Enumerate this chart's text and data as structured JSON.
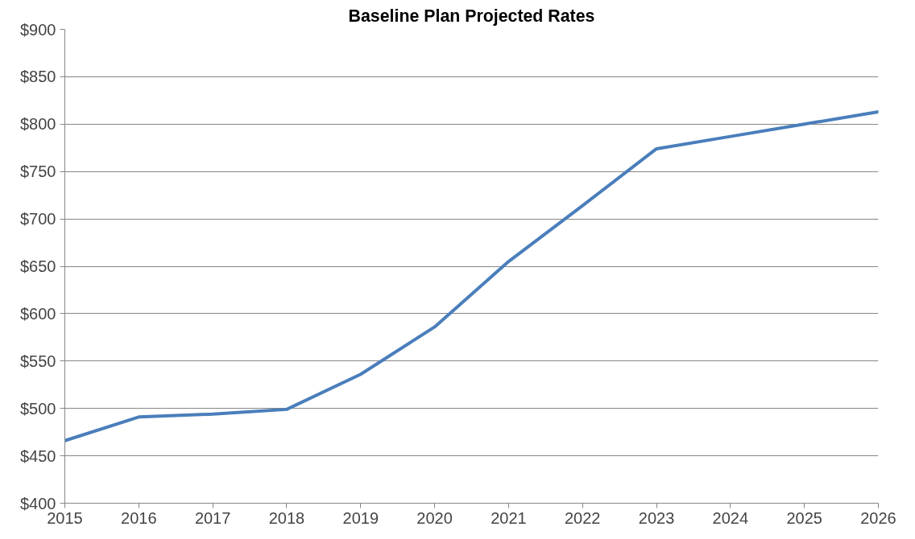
{
  "chart_data": {
    "type": "line",
    "title": "Baseline Plan Projected Rates",
    "x": [
      2015,
      2016,
      2017,
      2018,
      2019,
      2020,
      2021,
      2022,
      2023,
      2024,
      2025,
      2026
    ],
    "series": [
      {
        "color": "#4a7ebb",
        "values": [
          466,
          491,
          494,
          499,
          536,
          586,
          655,
          714,
          774,
          787,
          800,
          813
        ]
      }
    ],
    "xlim": [
      2015,
      2026
    ],
    "xticks": [
      2015,
      2016,
      2017,
      2018,
      2019,
      2020,
      2021,
      2022,
      2023,
      2024,
      2025,
      2026
    ],
    "ylim": [
      400,
      900
    ],
    "yticks": [
      {
        "value": 400,
        "label": "$400"
      },
      {
        "value": 450,
        "label": "$450"
      },
      {
        "value": 500,
        "label": "$500"
      },
      {
        "value": 550,
        "label": "$550"
      },
      {
        "value": 600,
        "label": "$600"
      },
      {
        "value": 650,
        "label": "$650"
      },
      {
        "value": 700,
        "label": "$700"
      },
      {
        "value": 750,
        "label": "$750"
      },
      {
        "value": 800,
        "label": "$800"
      },
      {
        "value": 850,
        "label": "$850"
      },
      {
        "value": 900,
        "label": "$900"
      }
    ],
    "grid": "y",
    "marker": "none",
    "line_style": "solid"
  }
}
